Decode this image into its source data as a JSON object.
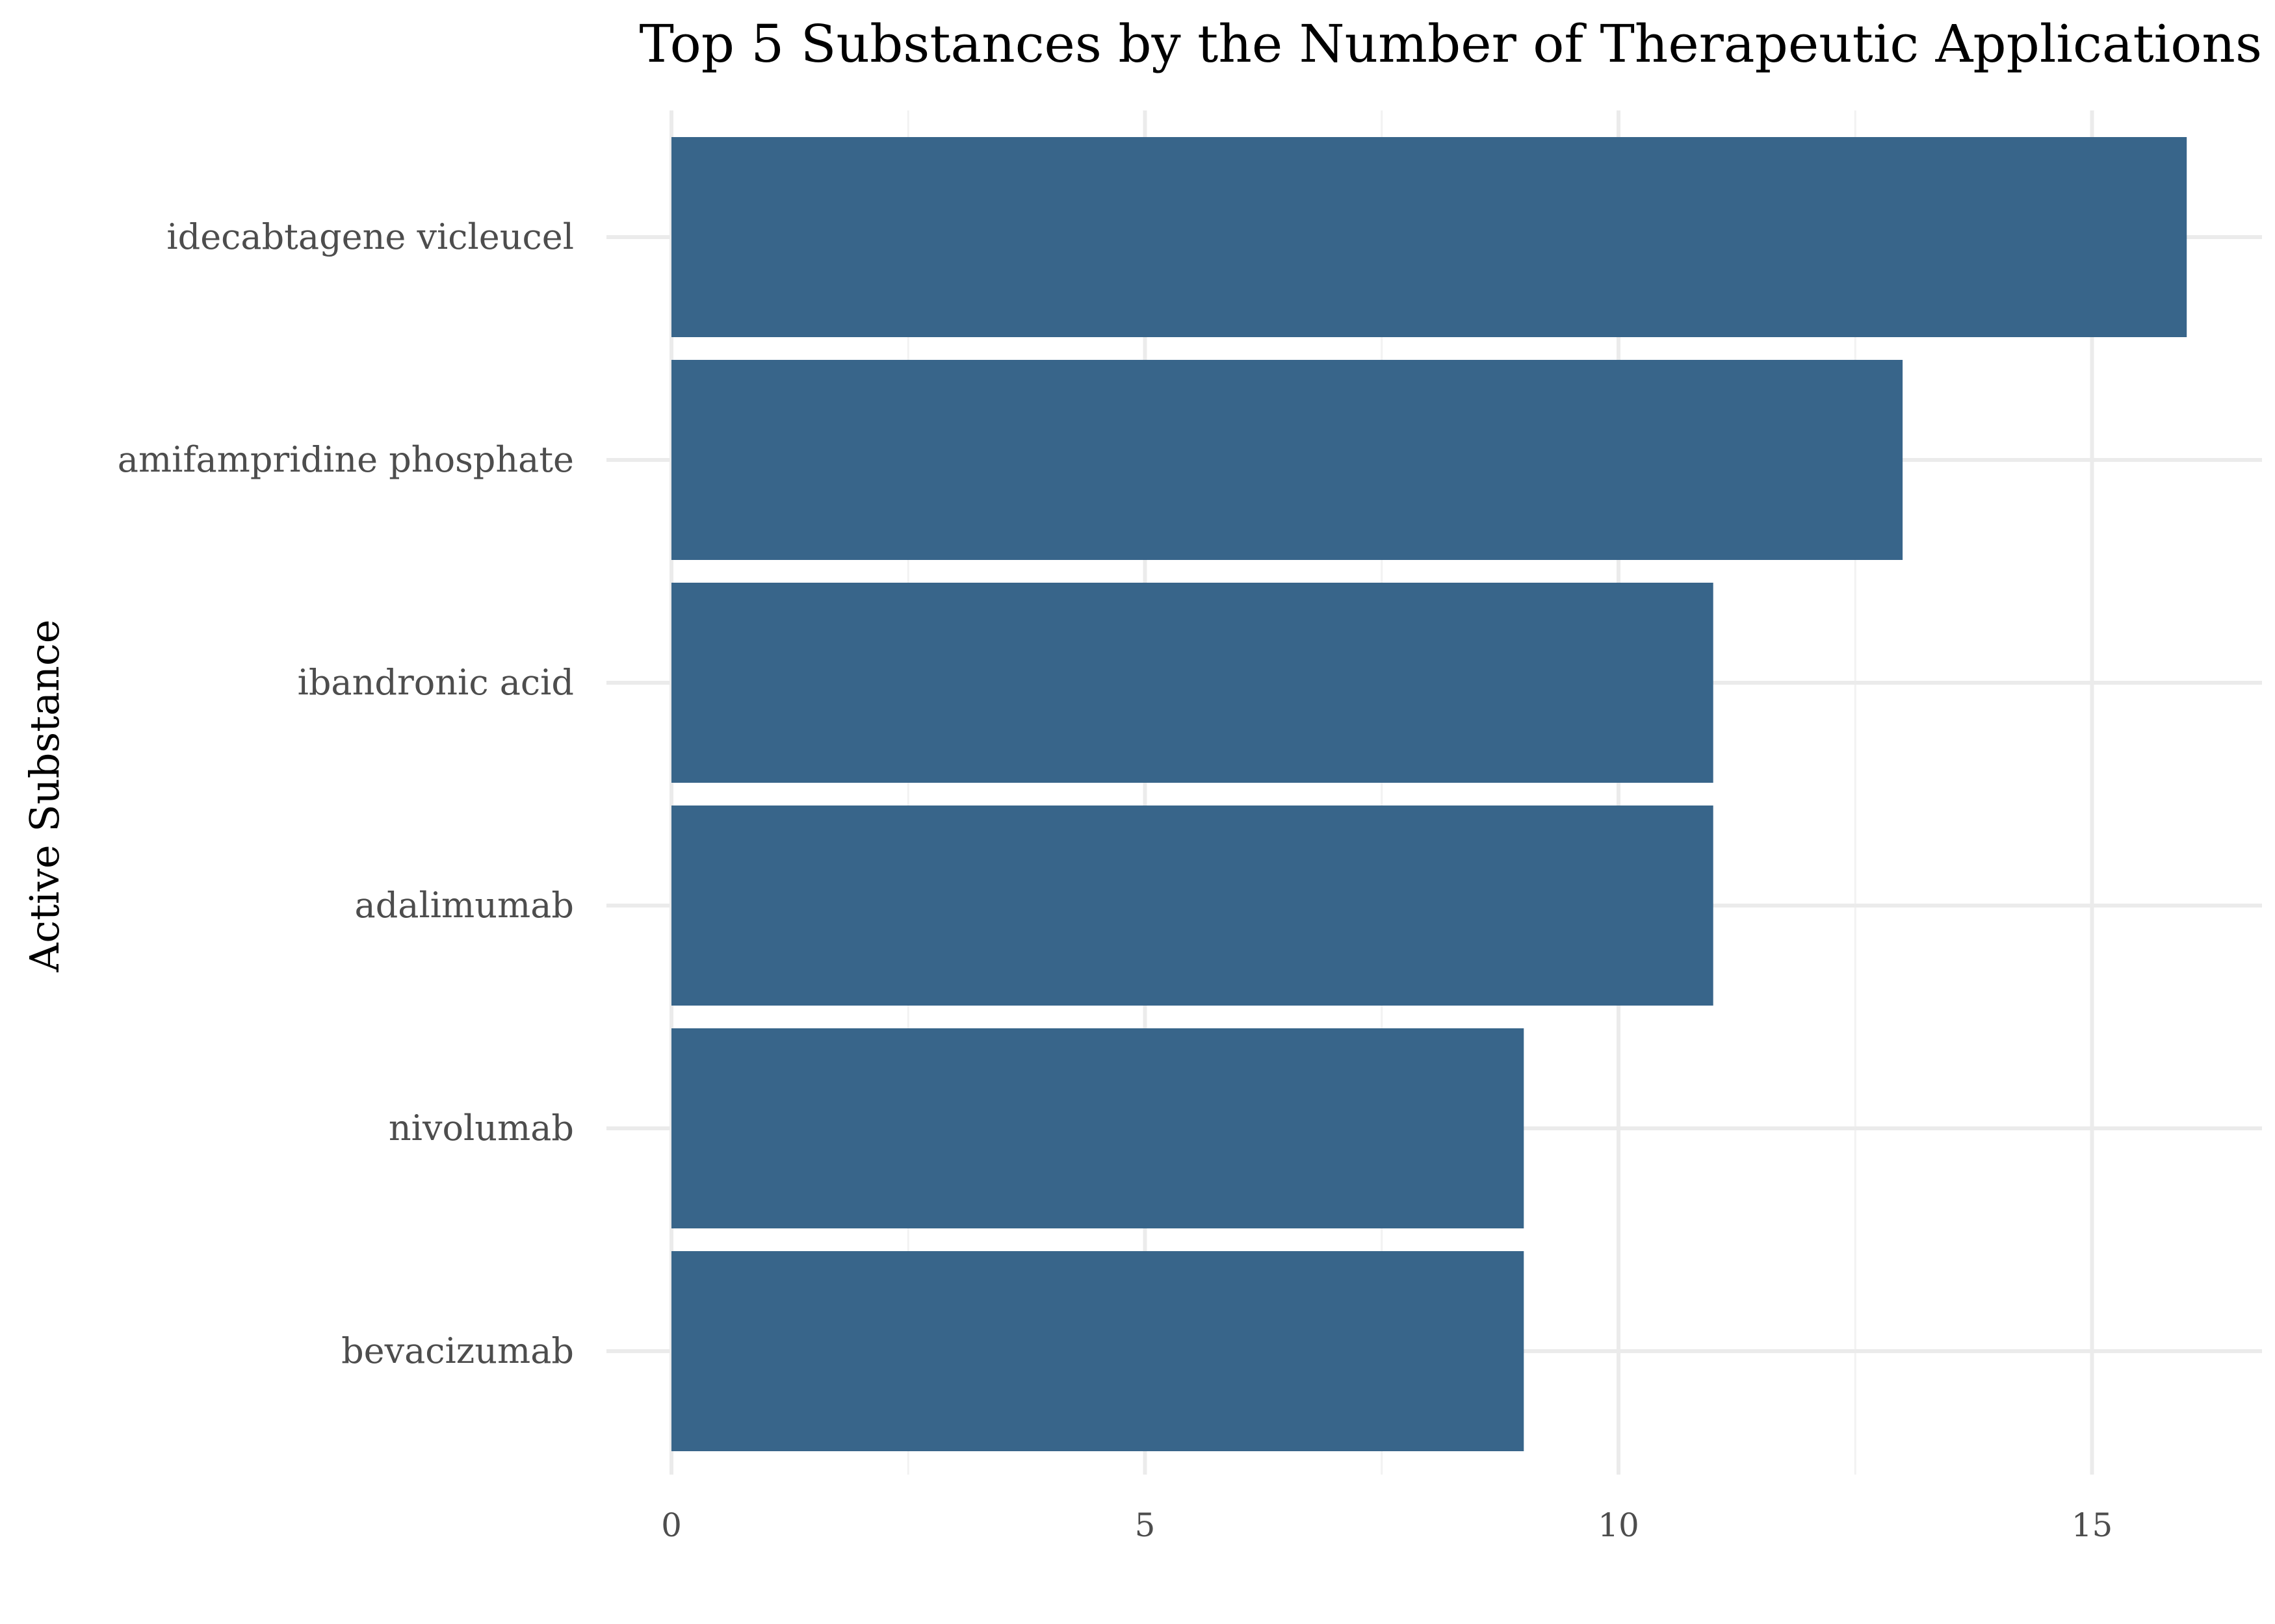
{
  "chart_data": {
    "type": "bar",
    "orientation": "horizontal",
    "title": "Top 5 Substances by the Number of Therapeutic Applications",
    "xlabel": "",
    "ylabel": "Active Substance",
    "categories": [
      "idecabtagene vicleucel",
      "amifampridine phosphate",
      "ibandronic acid",
      "adalimumab",
      "nivolumab",
      "bevacizumab"
    ],
    "values": [
      16,
      13,
      11,
      11,
      9,
      9
    ],
    "xlim": [
      0,
      16.8
    ],
    "xticks": [
      0,
      5,
      10,
      15
    ],
    "xtick_labels": [
      "0",
      "5",
      "10",
      "15"
    ],
    "bar_color": "#38658a",
    "grid": true,
    "legend": "none"
  }
}
